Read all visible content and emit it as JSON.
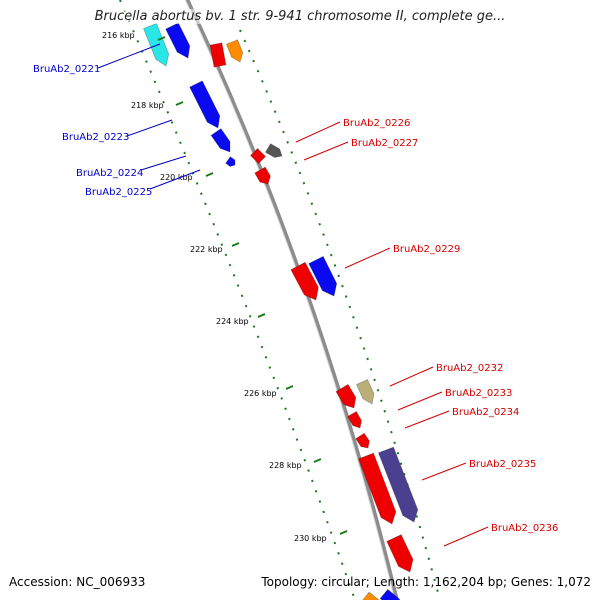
{
  "title": "Brucella abortus bv. 1 str. 9-941 chromosome II, complete ge...",
  "footer": {
    "accession": "Accession: NC_006933",
    "topology": "Topology: circular; Length: 1,162,204 bp; Genes: 1,072"
  },
  "colors": {
    "backbone": "#8c8c8c",
    "tick": "#1a7a1a",
    "left_label": "#0000c8",
    "right_label": "#d40000",
    "red_gene": "#ee0000",
    "blue_gene": "#0a0af0",
    "cyan_gene": "#2ae6e6",
    "orange_gene": "#ff8c00",
    "gray_gene": "#555555",
    "khaki_gene": "#b8b078",
    "purple_gene": "#4b3f8f"
  },
  "scale_ticks": [
    "216 kbp",
    "218 kbp",
    "220 kbp",
    "222 kbp",
    "224 kbp",
    "226 kbp",
    "228 kbp",
    "230 kbp"
  ],
  "left_labels": [
    "BruAb2_0221",
    "BruAb2_0223",
    "BruAb2_0224",
    "BruAb2_0225"
  ],
  "right_labels": [
    "BruAb2_0226",
    "BruAb2_0227",
    "BruAb2_0229",
    "BruAb2_0232",
    "BruAb2_0233",
    "BruAb2_0234",
    "BruAb2_0235",
    "BruAb2_0236"
  ]
}
